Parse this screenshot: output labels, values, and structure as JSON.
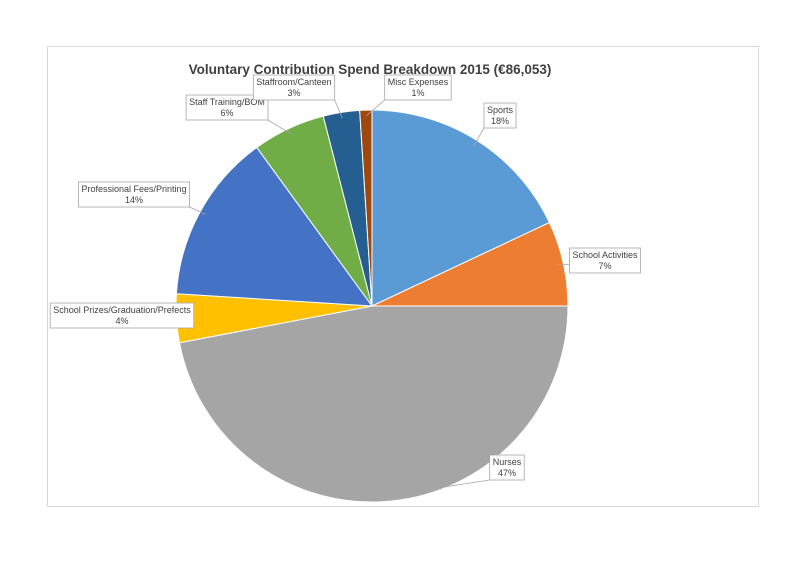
{
  "chart_data": {
    "type": "pie",
    "title": "Voluntary Contribution Spend Breakdown 2015 (€86,053)",
    "start_angle_deg": 0,
    "direction": "clockwise",
    "slices": [
      {
        "name": "Sports",
        "pct_label": "18%",
        "value": 18,
        "color": "#5b9bd5"
      },
      {
        "name": "School Activities",
        "pct_label": "7%",
        "value": 7,
        "color": "#ed7d31"
      },
      {
        "name": "Nurses",
        "pct_label": "47%",
        "value": 47,
        "color": "#a5a5a5"
      },
      {
        "name": "School Prizes/Graduation/Prefects",
        "pct_label": "4%",
        "value": 4,
        "color": "#ffc000"
      },
      {
        "name": "Professional Fees/Printing",
        "pct_label": "14%",
        "value": 14,
        "color": "#4472c4"
      },
      {
        "name": "Staff Training/BOM",
        "pct_label": "6%",
        "value": 6,
        "color": "#70ad47"
      },
      {
        "name": "Staffroom/Canteen",
        "pct_label": "3%",
        "value": 3,
        "color": "#255e91"
      },
      {
        "name": "Misc Expenses",
        "pct_label": "1%",
        "value": 1,
        "color": "#9e480e"
      }
    ],
    "legend": "none",
    "data_labels": "callouts"
  }
}
